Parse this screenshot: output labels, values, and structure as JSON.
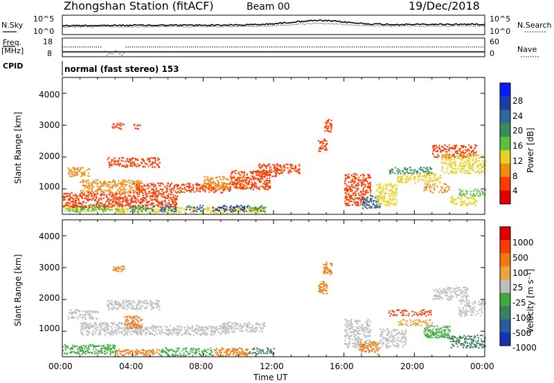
{
  "header": {
    "station_title": "Zhongshan Station (fitACF)",
    "beam": "Beam 00",
    "date": "19/Dec/2018"
  },
  "noise_panel": {
    "left_label": "N.Sky",
    "right_label": "N.Search",
    "left_ticks": [
      "10^5",
      "10^0"
    ],
    "right_ticks": [
      "10^5",
      "10^0"
    ]
  },
  "freq_panel": {
    "left_label_top": "Freq.",
    "left_label_unit": "[MHz]",
    "right_label": "Nave",
    "left_ticks": [
      "18",
      "8"
    ],
    "right_ticks": [
      "60",
      "0"
    ],
    "cpid_label": "CPID"
  },
  "mode_label": "normal (fast stereo) 153",
  "colors": {
    "power_scale": [
      "#0a1aff",
      "#1e3ca8",
      "#2e6a9e",
      "#3a8a5a",
      "#5cbf3a",
      "#e8d020",
      "#f08a10",
      "#ff3a00",
      "#e00000"
    ],
    "velocity_scale": [
      "#1a32b4",
      "#2a5aa0",
      "#3c8060",
      "#3caa3c",
      "#bdbdbd",
      "#f0a040",
      "#ee7a10",
      "#ff3c00",
      "#e00000"
    ]
  },
  "chart_data": [
    {
      "type": "heatmap",
      "name": "power",
      "ylabel": "Slant Range [km]",
      "colorbar_label": "Power [dB]",
      "colorbar_ticks": [
        "28",
        "24",
        "20",
        "16",
        "12",
        "8",
        "4"
      ],
      "y_ticks": [
        "4000",
        "3000",
        "2000",
        "1000"
      ],
      "ylim": [
        200,
        4500
      ],
      "xlim": [
        0,
        24
      ],
      "grid": false,
      "cells": [
        [
          0.0,
          3.0,
          300,
          500,
          3
        ],
        [
          0.5,
          2.5,
          400,
          500,
          5
        ],
        [
          0.2,
          3.5,
          300,
          400,
          4
        ],
        [
          3.0,
          11.5,
          250,
          450,
          3
        ],
        [
          3.8,
          5.2,
          300,
          500,
          5
        ],
        [
          5.5,
          6.5,
          300,
          550,
          6
        ],
        [
          7.0,
          8.0,
          300,
          500,
          6
        ],
        [
          8.5,
          10.5,
          300,
          500,
          7
        ],
        [
          10.5,
          11.5,
          300,
          500,
          5
        ],
        [
          0.3,
          1.5,
          1400,
          1700,
          2
        ],
        [
          1.0,
          4.5,
          900,
          1300,
          2
        ],
        [
          4.0,
          9.5,
          900,
          1200,
          1
        ],
        [
          8.0,
          10.5,
          1000,
          1400,
          2
        ],
        [
          9.5,
          11.8,
          1000,
          1600,
          1
        ],
        [
          0.0,
          6.5,
          450,
          900,
          1
        ],
        [
          2.5,
          5.5,
          1700,
          2000,
          1
        ],
        [
          11.0,
          12.2,
          1400,
          1800,
          1
        ],
        [
          12.0,
          13.5,
          1500,
          1800,
          1
        ],
        [
          16.0,
          17.5,
          500,
          1500,
          1
        ],
        [
          17.0,
          18.0,
          400,
          800,
          6
        ],
        [
          17.8,
          19.0,
          500,
          1200,
          3
        ],
        [
          18.5,
          21.0,
          1500,
          1700,
          5
        ],
        [
          19.0,
          21.5,
          1200,
          1500,
          3
        ],
        [
          21.0,
          23.5,
          2000,
          2400,
          1
        ],
        [
          21.5,
          24.0,
          1500,
          2100,
          3
        ],
        [
          22.0,
          23.5,
          500,
          800,
          3
        ],
        [
          22.5,
          24.0,
          800,
          1000,
          4
        ],
        [
          20.5,
          22.0,
          900,
          1200,
          2
        ],
        [
          2.8,
          3.5,
          2900,
          3100,
          1
        ],
        [
          4.0,
          4.4,
          2900,
          3050,
          1
        ],
        [
          14.5,
          15.0,
          2200,
          2600,
          1
        ],
        [
          14.8,
          15.3,
          2800,
          3200,
          1
        ]
      ]
    },
    {
      "type": "heatmap",
      "name": "velocity",
      "ylabel": "Slant Range [km]",
      "colorbar_label": "Velocity [m s⁻¹]",
      "colorbar_ticks": [
        "1000",
        "500",
        "100",
        "25",
        "-25",
        "-100",
        "-500",
        "-1000"
      ],
      "y_ticks": [
        "4000",
        "3000",
        "2000",
        "1000"
      ],
      "ylim": [
        200,
        4500
      ],
      "xlim": [
        0,
        24
      ],
      "x_ticks": [
        "00:00",
        "04:00",
        "08:00",
        "12:00",
        "16:00",
        "20:00",
        "00:00"
      ],
      "xlabel": "Time UT",
      "grid": false,
      "cells": [
        [
          0.0,
          3.0,
          300,
          600,
          3
        ],
        [
          3.0,
          5.5,
          250,
          450,
          6
        ],
        [
          5.5,
          8.5,
          250,
          500,
          3
        ],
        [
          8.5,
          10.5,
          250,
          500,
          6
        ],
        [
          10.5,
          12.0,
          300,
          500,
          2
        ],
        [
          0.3,
          2.0,
          1400,
          1700,
          4
        ],
        [
          1.0,
          4.5,
          900,
          1300,
          4
        ],
        [
          4.0,
          9.5,
          900,
          1200,
          4
        ],
        [
          9.0,
          11.5,
          1000,
          1300,
          4
        ],
        [
          3.5,
          4.5,
          1100,
          1500,
          6
        ],
        [
          2.5,
          5.5,
          1700,
          2000,
          4
        ],
        [
          16.0,
          17.5,
          500,
          1400,
          4
        ],
        [
          16.8,
          18.0,
          300,
          700,
          6
        ],
        [
          18.0,
          19.5,
          500,
          1100,
          4
        ],
        [
          18.5,
          21.0,
          1500,
          1700,
          7
        ],
        [
          19.0,
          21.0,
          1200,
          1400,
          5
        ],
        [
          21.0,
          23.0,
          2000,
          2400,
          4
        ],
        [
          22.5,
          24.0,
          1500,
          2000,
          4
        ],
        [
          22.0,
          24.0,
          500,
          900,
          2
        ],
        [
          20.5,
          22.0,
          800,
          1200,
          3
        ],
        [
          2.8,
          3.5,
          2900,
          3100,
          6
        ],
        [
          14.5,
          15.0,
          2200,
          2600,
          6
        ],
        [
          14.8,
          15.3,
          2800,
          3200,
          6
        ]
      ]
    }
  ]
}
